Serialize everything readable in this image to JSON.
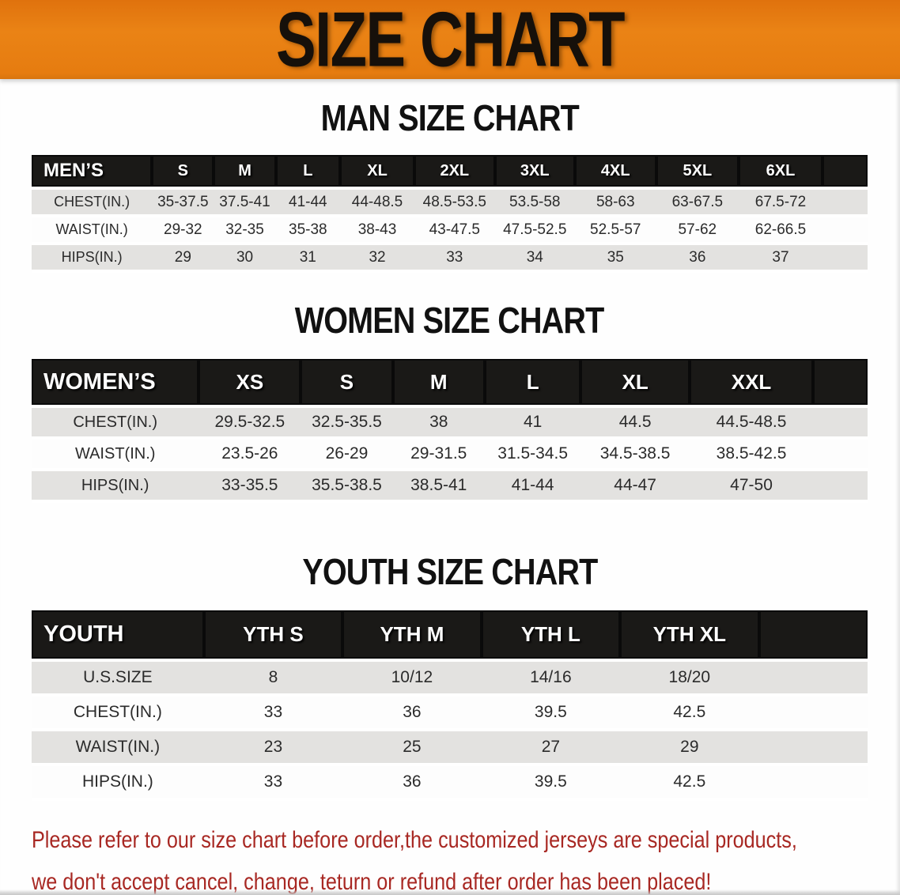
{
  "banner": {
    "title": "SIZE CHART",
    "bg_color": "#e67c10",
    "text_color": "#16100a"
  },
  "sections": [
    {
      "id": "men",
      "heading": "MAN SIZE CHART",
      "header_label": "MEN’S",
      "columns": [
        "S",
        "M",
        "L",
        "XL",
        "2XL",
        "3XL",
        "4XL",
        "5XL",
        "6XL"
      ],
      "rows": [
        {
          "label": "CHEST(IN.)",
          "values": [
            "35-37.5",
            "37.5-41",
            "41-44",
            "44-48.5",
            "48.5-53.5",
            "53.5-58",
            "58-63",
            "63-67.5",
            "67.5-72"
          ]
        },
        {
          "label": "WAIST(IN.)",
          "values": [
            "29-32",
            "32-35",
            "35-38",
            "38-43",
            "43-47.5",
            "47.5-52.5",
            "52.5-57",
            "57-62",
            "62-66.5"
          ]
        },
        {
          "label": "HIPS(IN.)",
          "values": [
            "29",
            "30",
            "31",
            "32",
            "33",
            "34",
            "35",
            "36",
            "37"
          ]
        }
      ]
    },
    {
      "id": "women",
      "heading": "WOMEN SIZE CHART",
      "header_label": "WOMEN’S",
      "columns": [
        "XS",
        "S",
        "M",
        "L",
        "XL",
        "XXL"
      ],
      "rows": [
        {
          "label": "CHEST(IN.)",
          "values": [
            "29.5-32.5",
            "32.5-35.5",
            "38",
            "41",
            "44.5",
            "44.5-48.5"
          ]
        },
        {
          "label": "WAIST(IN.)",
          "values": [
            "23.5-26",
            "26-29",
            "29-31.5",
            "31.5-34.5",
            "34.5-38.5",
            "38.5-42.5"
          ]
        },
        {
          "label": "HIPS(IN.)",
          "values": [
            "33-35.5",
            "35.5-38.5",
            "38.5-41",
            "41-44",
            "44-47",
            "47-50"
          ]
        }
      ]
    },
    {
      "id": "youth",
      "heading": "YOUTH SIZE CHART",
      "header_label": "YOUTH",
      "columns": [
        "YTH S",
        "YTH M",
        "YTH L",
        "YTH XL"
      ],
      "rows": [
        {
          "label": "U.S.SIZE",
          "values": [
            "8",
            "10/12",
            "14/16",
            "18/20"
          ]
        },
        {
          "label": "CHEST(IN.)",
          "values": [
            "33",
            "36",
            "39.5",
            "42.5"
          ]
        },
        {
          "label": "WAIST(IN.)",
          "values": [
            "23",
            "25",
            "27",
            "29"
          ]
        },
        {
          "label": "HIPS(IN.)",
          "values": [
            "33",
            "36",
            "39.5",
            "42.5"
          ]
        }
      ]
    }
  ],
  "disclaimer": {
    "line1": "Please refer to our size chart before order,the customized jerseys are special products,",
    "line2": "we don't accept cancel, change, teturn or refund after order has been placed!",
    "color": "#a82823"
  },
  "row_stripe_color": "#e3e2e0",
  "header_bar_color": "#1a1917"
}
